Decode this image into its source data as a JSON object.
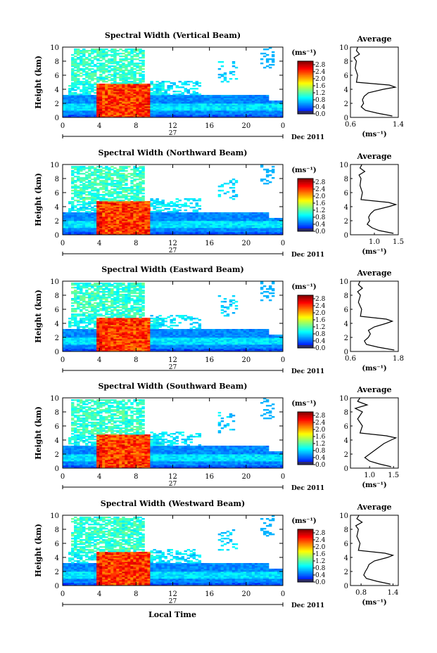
{
  "figure": {
    "xlabel_bottom": "Local Time",
    "colorbar_unit": "(ms⁻¹)",
    "avg_title": "Average",
    "avg_unit": "(ms⁻¹)",
    "date_label": "27",
    "month_label": "Dec 2011",
    "ylabel": "Height (km)"
  },
  "chart_data": [
    {
      "type": "heatmap",
      "title": "Spectral Width (Vertical Beam)",
      "ylabel": "Height (km)",
      "x_ticks": [
        "0",
        "4",
        "8",
        "12",
        "16",
        "20",
        "0"
      ],
      "y_ticks": [
        "0",
        "2",
        "4",
        "6",
        "8",
        "10"
      ],
      "xlim": [
        0,
        24
      ],
      "ylim": [
        0,
        10
      ],
      "colorbar_ticks": [
        "0.0",
        "0.4",
        "0.8",
        "1.2",
        "1.6",
        "2.0",
        "2.4",
        "2.8"
      ],
      "colorbar_range": [
        0,
        3.0
      ],
      "average_profile": {
        "xlim": [
          0.6,
          1.4
        ],
        "x_ticks": [
          "0.6",
          "1.4"
        ],
        "height_km": [
          0.2,
          0.6,
          1.0,
          1.5,
          2.0,
          2.5,
          3.0,
          3.5,
          4.0,
          4.3,
          4.6,
          5.0,
          6.0,
          7.0,
          8.0,
          8.5,
          9.0,
          9.5,
          10.0
        ],
        "width": [
          1.3,
          1.05,
          0.85,
          0.78,
          0.82,
          0.8,
          0.83,
          0.9,
          1.15,
          1.35,
          1.25,
          0.7,
          0.72,
          0.68,
          0.7,
          0.66,
          0.75,
          0.7,
          0.72
        ]
      }
    },
    {
      "type": "heatmap",
      "title": "Spectral Width (Northward Beam)",
      "ylabel": "Height (km)",
      "x_ticks": [
        "0",
        "4",
        "8",
        "12",
        "16",
        "20",
        "0"
      ],
      "y_ticks": [
        "0",
        "2",
        "4",
        "6",
        "8",
        "10"
      ],
      "xlim": [
        0,
        24
      ],
      "ylim": [
        0,
        10
      ],
      "colorbar_ticks": [
        "0.0",
        "0.4",
        "0.8",
        "1.2",
        "1.6",
        "2.0",
        "2.4",
        "2.8"
      ],
      "colorbar_range": [
        0,
        3.0
      ],
      "average_profile": {
        "xlim": [
          0.5,
          1.5
        ],
        "x_ticks": [
          "1.0",
          "1.5"
        ],
        "height_km": [
          0.2,
          0.6,
          1.0,
          1.5,
          2.0,
          2.5,
          3.0,
          3.5,
          4.0,
          4.3,
          4.6,
          5.0,
          6.0,
          7.0,
          8.0,
          8.5,
          9.0,
          9.5,
          10.0
        ],
        "width": [
          1.4,
          1.1,
          0.95,
          0.85,
          0.9,
          0.88,
          0.92,
          1.0,
          1.3,
          1.45,
          1.3,
          0.72,
          0.75,
          0.7,
          0.72,
          0.68,
          0.8,
          0.7,
          0.74
        ]
      }
    },
    {
      "type": "heatmap",
      "title": "Spectral Width (Eastward Beam)",
      "ylabel": "Height (km)",
      "x_ticks": [
        "0",
        "4",
        "8",
        "12",
        "16",
        "20",
        "0"
      ],
      "y_ticks": [
        "0",
        "2",
        "4",
        "6",
        "8",
        "10"
      ],
      "xlim": [
        0,
        24
      ],
      "ylim": [
        0,
        10
      ],
      "colorbar_ticks": [
        "0.0",
        "0.4",
        "0.8",
        "1.2",
        "1.6",
        "2.0",
        "2.4",
        "2.8"
      ],
      "colorbar_range": [
        0,
        3.0
      ],
      "average_profile": {
        "xlim": [
          0.6,
          1.8
        ],
        "x_ticks": [
          "0.6",
          "1.8"
        ],
        "height_km": [
          0.2,
          0.6,
          1.0,
          1.5,
          2.0,
          2.5,
          3.0,
          3.5,
          4.0,
          4.3,
          4.6,
          5.0,
          6.0,
          7.0,
          8.0,
          8.5,
          9.0,
          9.5,
          10.0
        ],
        "width": [
          1.7,
          1.3,
          1.0,
          0.95,
          1.05,
          1.1,
          1.05,
          1.2,
          1.5,
          1.65,
          1.5,
          0.85,
          0.88,
          0.8,
          0.85,
          0.78,
          0.9,
          0.8,
          0.84
        ]
      }
    },
    {
      "type": "heatmap",
      "title": "Spectral Width (Southward Beam)",
      "ylabel": "Height (km)",
      "x_ticks": [
        "0",
        "4",
        "8",
        "12",
        "16",
        "20",
        "0"
      ],
      "y_ticks": [
        "0",
        "2",
        "4",
        "6",
        "8",
        "10"
      ],
      "xlim": [
        0,
        24
      ],
      "ylim": [
        0,
        10
      ],
      "colorbar_ticks": [
        "0.0",
        "0.4",
        "0.8",
        "1.2",
        "1.6",
        "2.0",
        "2.4",
        "2.8"
      ],
      "colorbar_range": [
        0,
        3.0
      ],
      "average_profile": {
        "xlim": [
          0.6,
          1.6
        ],
        "x_ticks": [
          "1.0",
          "1.5"
        ],
        "height_km": [
          0.2,
          0.6,
          1.0,
          1.5,
          2.0,
          2.5,
          3.0,
          3.5,
          4.0,
          4.3,
          4.6,
          5.0,
          6.0,
          7.0,
          8.0,
          8.5,
          9.0,
          9.5,
          10.0
        ],
        "width": [
          1.45,
          1.2,
          1.0,
          0.9,
          1.0,
          1.1,
          1.2,
          1.3,
          1.45,
          1.55,
          1.35,
          0.8,
          0.85,
          0.75,
          0.85,
          0.7,
          0.95,
          0.75,
          0.8
        ]
      }
    },
    {
      "type": "heatmap",
      "title": "Spectral Width (Westward Beam)",
      "ylabel": "Height (km)",
      "x_ticks": [
        "0",
        "4",
        "8",
        "12",
        "16",
        "20",
        "0"
      ],
      "y_ticks": [
        "0",
        "2",
        "4",
        "6",
        "8",
        "10"
      ],
      "xlim": [
        0,
        24
      ],
      "ylim": [
        0,
        10
      ],
      "colorbar_ticks": [
        "0.0",
        "0.4",
        "0.8",
        "1.2",
        "1.6",
        "2.0",
        "2.4",
        "2.8"
      ],
      "colorbar_range": [
        0,
        3.0
      ],
      "average_profile": {
        "xlim": [
          0.6,
          1.5
        ],
        "x_ticks": [
          "0.8",
          "1.4"
        ],
        "height_km": [
          0.2,
          0.6,
          1.0,
          1.5,
          2.0,
          2.5,
          3.0,
          3.5,
          4.0,
          4.3,
          4.6,
          5.0,
          6.0,
          7.0,
          8.0,
          8.5,
          9.0,
          9.5,
          10.0
        ],
        "width": [
          1.35,
          1.1,
          0.9,
          0.85,
          0.88,
          0.92,
          0.95,
          1.05,
          1.3,
          1.4,
          1.25,
          0.75,
          0.78,
          0.72,
          0.75,
          0.7,
          0.82,
          0.72,
          0.76
        ]
      }
    }
  ]
}
